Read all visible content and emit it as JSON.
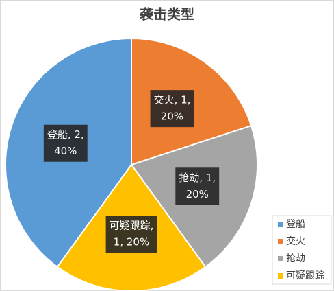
{
  "chart_data": {
    "type": "pie",
    "title": "袭击类型",
    "categories": [
      "登船",
      "交火",
      "抢劫",
      "可疑跟踪"
    ],
    "values": [
      2,
      1,
      1,
      1
    ],
    "value_labels": [
      [
        "登船, 2,",
        "40%"
      ],
      [
        "交火, 1,",
        "20%"
      ],
      [
        "抢劫, 1,",
        "20%"
      ],
      [
        "可疑跟踪,",
        "1, 20%"
      ]
    ],
    "colors": [
      "#5b9bd5",
      "#ed7d31",
      "#a5a5a5",
      "#ffc000"
    ],
    "legend": "bottom-right"
  }
}
